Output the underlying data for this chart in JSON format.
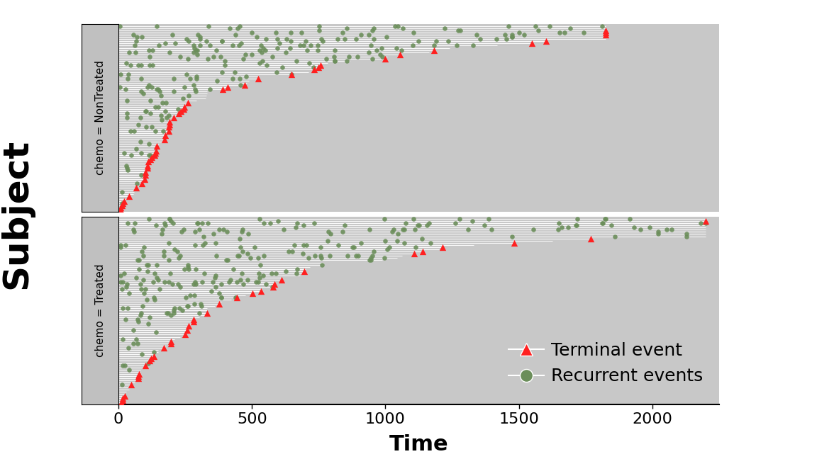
{
  "xlabel": "Time",
  "ylabel": "Subject",
  "xlim": [
    0,
    2250
  ],
  "panel_bg": "#c8c8c8",
  "line_color": "white",
  "terminal_color": "#FF2020",
  "recurrent_color": "#6B8E5A",
  "terminal_label": "Terminal event",
  "recurrent_label": "Recurrent events",
  "panel_labels": [
    "chemo = NonTreated",
    "chemo = Treated"
  ],
  "nontreated_n": 85,
  "treated_n": 85,
  "font_size_label": 22,
  "font_size_tick": 16,
  "font_size_panel_strip": 11,
  "font_size_legend": 18,
  "font_size_ylabel": 36,
  "strip_bg": "#c0c0c0",
  "legend_marker_size": 13
}
